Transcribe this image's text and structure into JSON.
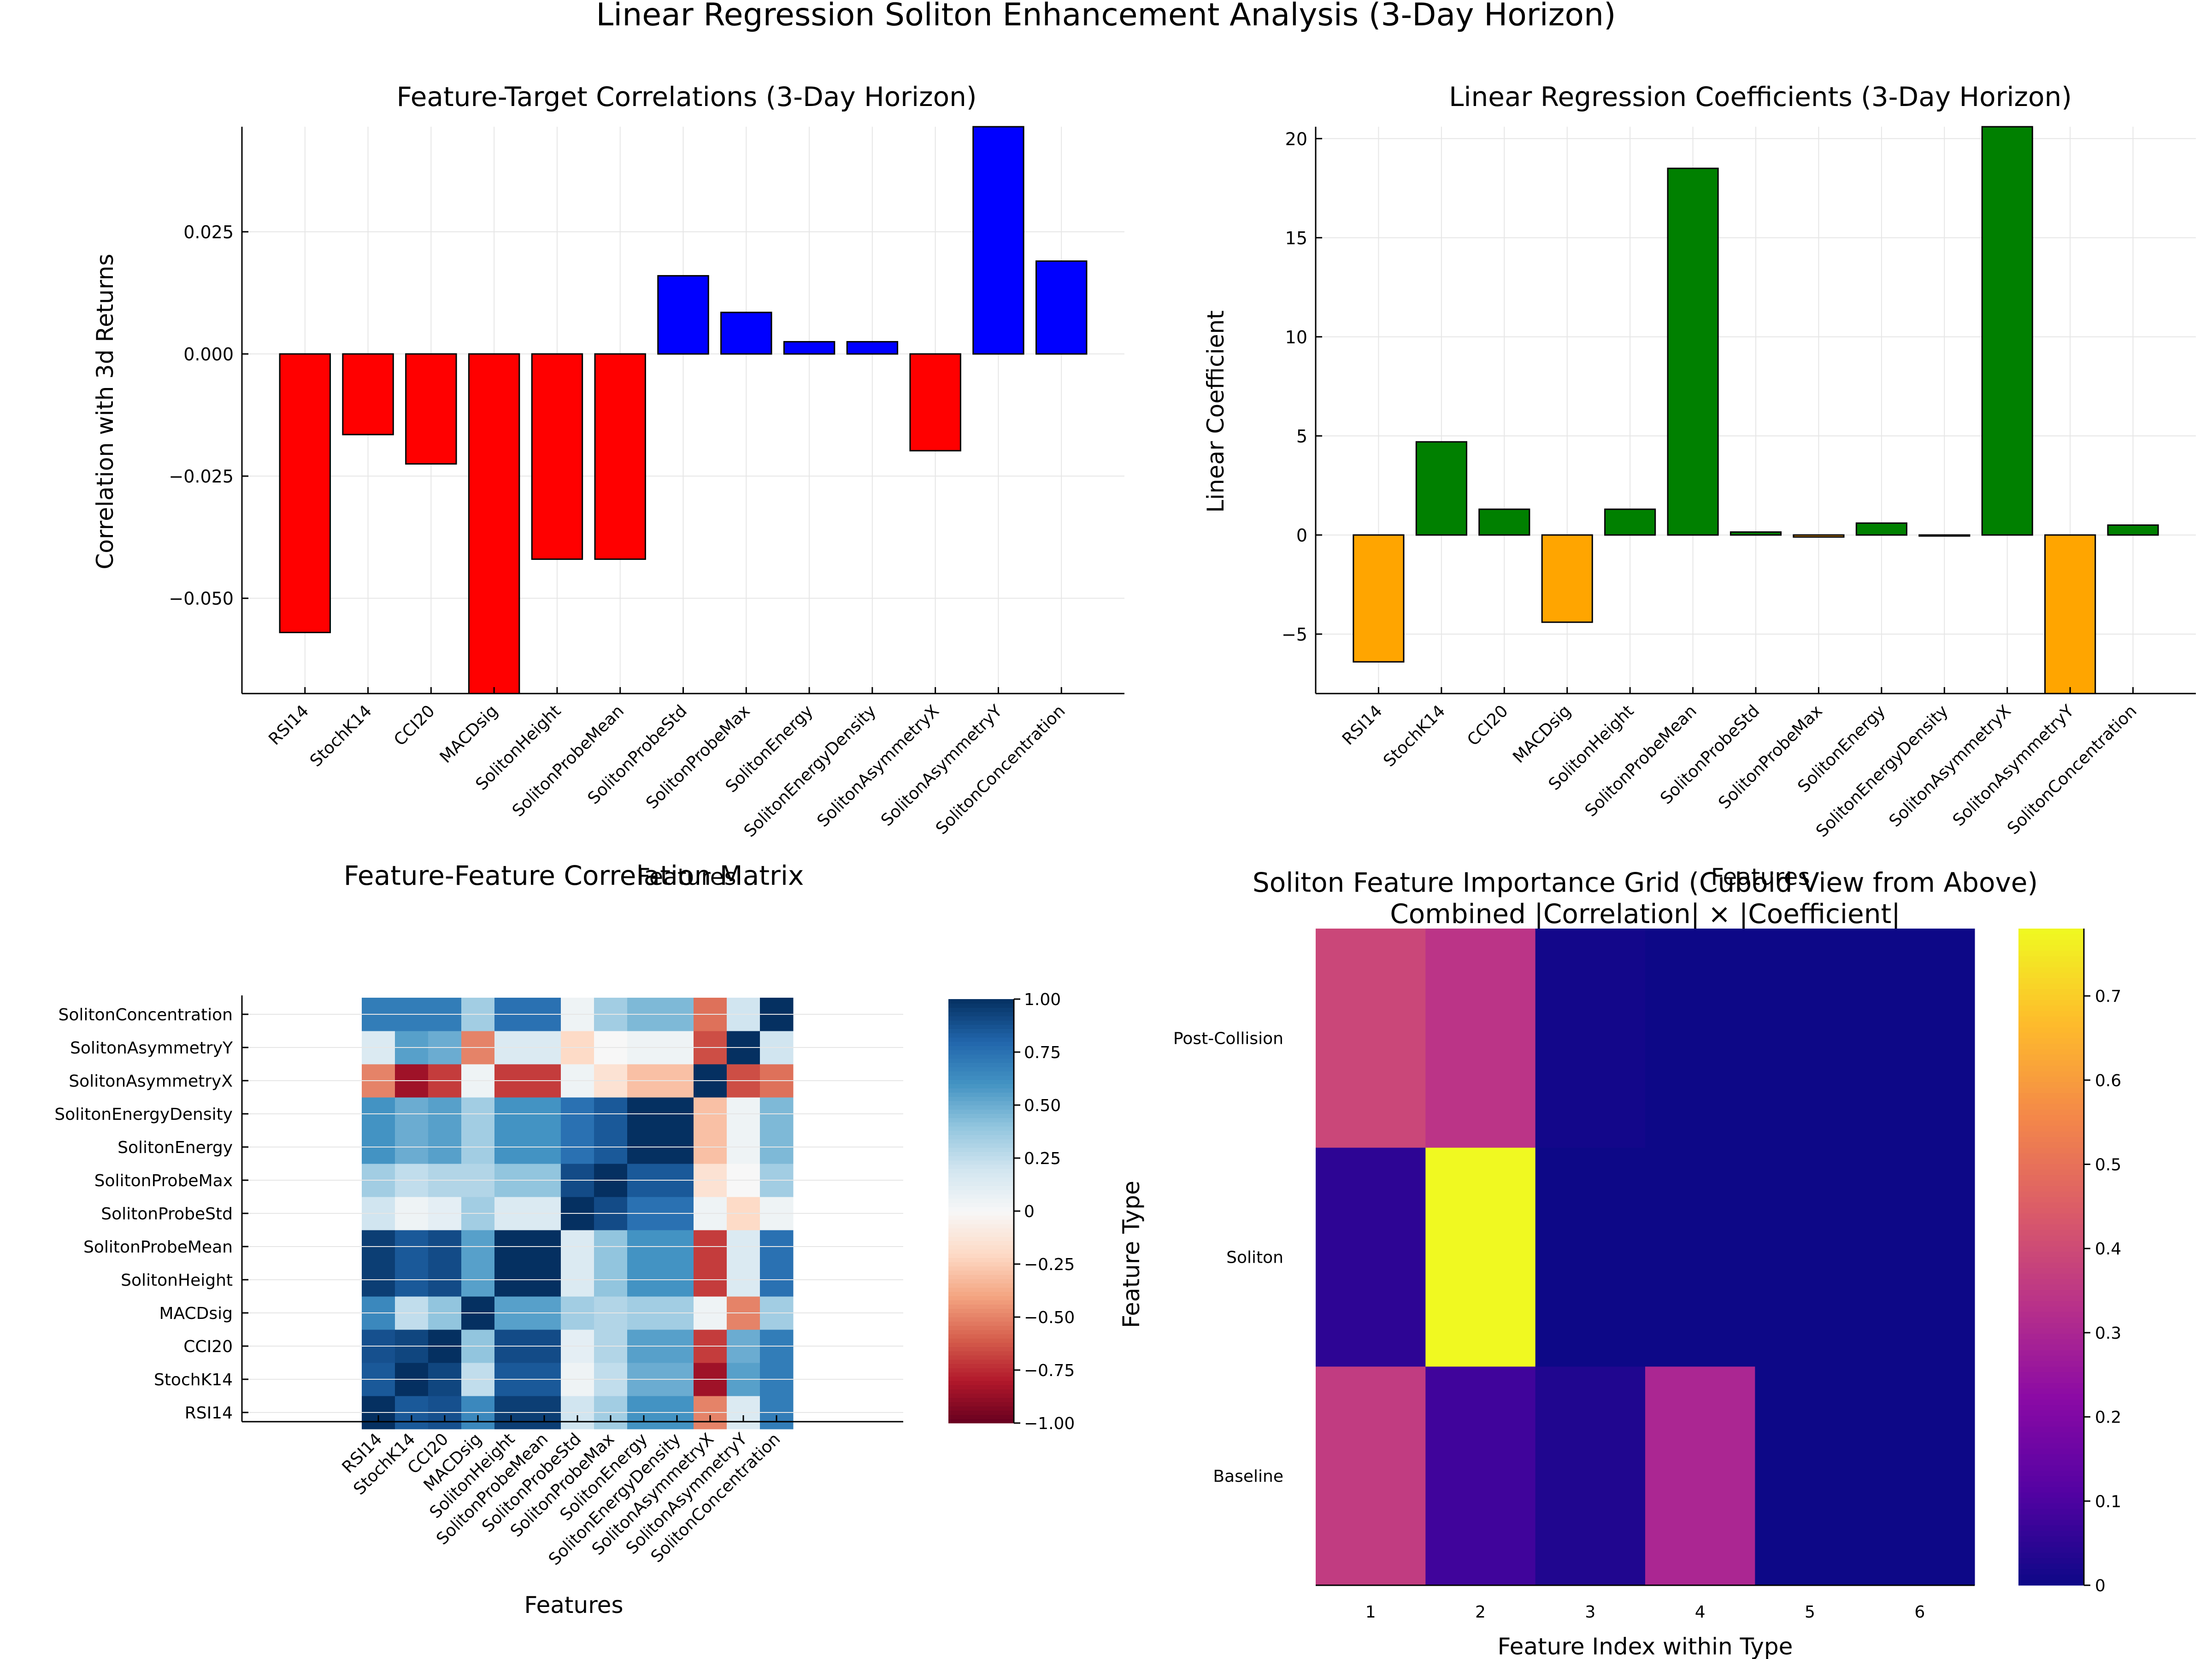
{
  "suptitle": "Linear Regression Soliton Enhancement Analysis (3-Day Horizon)",
  "features": [
    "RSI14",
    "StochK14",
    "CCI20",
    "MACDsig",
    "SolitonHeight",
    "SolitonProbeMean",
    "SolitonProbeStd",
    "SolitonProbeMax",
    "SolitonEnergy",
    "SolitonEnergyDensity",
    "SolitonAsymmetryX",
    "SolitonAsymmetryY",
    "SolitonConcentration"
  ],
  "colors": {
    "negative_corr": "#ff0000",
    "positive_corr": "#0000ff",
    "positive_coef": "#008000",
    "negative_coef": "#ffa500"
  },
  "chart_data": [
    {
      "type": "bar",
      "title": "Feature-Target Correlations (3-Day Horizon)",
      "xlabel": "Features",
      "ylabel": "Correlation with 3d Returns",
      "categories": [
        "RSI14",
        "StochK14",
        "CCI20",
        "MACDsig",
        "SolitonHeight",
        "SolitonProbeMean",
        "SolitonProbeStd",
        "SolitonProbeMax",
        "SolitonEnergy",
        "SolitonEnergyDensity",
        "SolitonAsymmetryX",
        "SolitonAsymmetryY",
        "SolitonConcentration"
      ],
      "values": [
        -0.057,
        -0.0165,
        -0.0225,
        -0.072,
        -0.042,
        -0.042,
        0.016,
        0.0085,
        0.0025,
        0.0025,
        -0.0198,
        0.047,
        0.019
      ],
      "ylim": [
        -0.0695,
        0.0465
      ],
      "yticks": [
        -0.05,
        -0.025,
        0.0,
        0.025
      ],
      "ytick_labels": [
        "−0.050",
        "−0.025",
        "0.000",
        "0.025"
      ],
      "grid": true
    },
    {
      "type": "bar",
      "title": "Linear Regression Coefficients (3-Day Horizon)",
      "xlabel": "Features",
      "ylabel": "Linear Coefficient",
      "categories": [
        "RSI14",
        "StochK14",
        "CCI20",
        "MACDsig",
        "SolitonHeight",
        "SolitonProbeMean",
        "SolitonProbeStd",
        "SolitonProbeMax",
        "SolitonEnergy",
        "SolitonEnergyDensity",
        "SolitonAsymmetryX",
        "SolitonAsymmetryY",
        "SolitonConcentration"
      ],
      "values": [
        -6.4,
        4.7,
        1.3,
        -4.4,
        1.3,
        18.5,
        0.15,
        -0.1,
        0.6,
        -0.05,
        20.6,
        -8.5,
        0.5
      ],
      "ylim": [
        -8.0,
        20.6
      ],
      "yticks": [
        -5,
        0,
        5,
        10,
        15,
        20
      ],
      "ytick_labels": [
        "−5",
        "0",
        "5",
        "10",
        "15",
        "20"
      ],
      "grid": true
    },
    {
      "type": "heatmap",
      "title": "Feature-Feature Correlation Matrix",
      "xlabel": "Features",
      "rows": [
        "RSI14",
        "StochK14",
        "CCI20",
        "MACDsig",
        "SolitonHeight",
        "SolitonProbeMean",
        "SolitonProbeStd",
        "SolitonProbeMax",
        "SolitonEnergy",
        "SolitonEnergyDensity",
        "SolitonAsymmetryX",
        "SolitonAsymmetryY",
        "SolitonConcentration"
      ],
      "columns": [
        "RSI14",
        "StochK14",
        "CCI20",
        "MACDsig",
        "SolitonHeight",
        "SolitonProbeMean",
        "SolitonProbeStd",
        "SolitonProbeMax",
        "SolitonEnergy",
        "SolitonEnergyDensity",
        "SolitonAsymmetryX",
        "SolitonAsymmetryY",
        "SolitonConcentration"
      ],
      "matrix": [
        [
          1.0,
          0.85,
          0.88,
          0.65,
          0.95,
          0.95,
          0.2,
          0.35,
          0.6,
          0.6,
          -0.5,
          0.15,
          0.7
        ],
        [
          0.85,
          1.0,
          0.92,
          0.25,
          0.85,
          0.85,
          0.05,
          0.25,
          0.5,
          0.5,
          -0.85,
          0.55,
          0.7
        ],
        [
          0.88,
          0.92,
          1.0,
          0.4,
          0.9,
          0.9,
          0.1,
          0.3,
          0.55,
          0.55,
          -0.7,
          0.5,
          0.7
        ],
        [
          0.65,
          0.25,
          0.4,
          1.0,
          0.55,
          0.55,
          0.35,
          0.3,
          0.35,
          0.35,
          0.05,
          -0.5,
          0.35
        ],
        [
          0.95,
          0.85,
          0.9,
          0.55,
          1.0,
          1.0,
          0.15,
          0.4,
          0.6,
          0.6,
          -0.7,
          0.15,
          0.75
        ],
        [
          0.95,
          0.85,
          0.9,
          0.55,
          1.0,
          1.0,
          0.15,
          0.4,
          0.6,
          0.6,
          -0.7,
          0.15,
          0.75
        ],
        [
          0.2,
          0.05,
          0.1,
          0.35,
          0.15,
          0.15,
          1.0,
          0.9,
          0.75,
          0.75,
          0.05,
          -0.2,
          0.05
        ],
        [
          0.35,
          0.25,
          0.3,
          0.3,
          0.4,
          0.4,
          0.9,
          1.0,
          0.85,
          0.85,
          -0.15,
          0.0,
          0.35
        ],
        [
          0.6,
          0.5,
          0.55,
          0.35,
          0.6,
          0.6,
          0.75,
          0.85,
          1.0,
          1.0,
          -0.3,
          0.05,
          0.45
        ],
        [
          0.6,
          0.5,
          0.55,
          0.35,
          0.6,
          0.6,
          0.75,
          0.85,
          1.0,
          1.0,
          -0.3,
          0.05,
          0.45
        ],
        [
          -0.5,
          -0.85,
          -0.7,
          0.05,
          -0.7,
          -0.7,
          0.05,
          -0.15,
          -0.3,
          -0.3,
          1.0,
          -0.65,
          -0.55
        ],
        [
          0.15,
          0.55,
          0.5,
          -0.5,
          0.15,
          0.15,
          -0.2,
          0.0,
          0.05,
          0.05,
          -0.65,
          1.0,
          0.2
        ],
        [
          0.7,
          0.7,
          0.7,
          0.35,
          0.75,
          0.75,
          0.05,
          0.35,
          0.45,
          0.45,
          -0.55,
          0.2,
          1.0
        ]
      ],
      "colorbar": {
        "range": [
          -1.0,
          1.0
        ],
        "ticks": [
          -1.0,
          -0.75,
          -0.5,
          -0.25,
          0,
          0.25,
          0.5,
          0.75,
          1.0
        ],
        "tick_labels": [
          "−1.00",
          "−0.75",
          "−0.50",
          "−0.25",
          "0",
          "0.25",
          "0.50",
          "0.75",
          "1.00"
        ],
        "colormap": "RdBu"
      }
    },
    {
      "type": "heatmap",
      "title": "Soliton Feature Importance Grid (Cuboid View from Above)",
      "subtitle": "Combined |Correlation| × |Coefficient|",
      "xlabel": "Feature Index within Type",
      "ylabel": "Feature Type",
      "x": [
        1,
        2,
        3,
        4,
        5,
        6
      ],
      "rows": [
        "Baseline",
        "Soliton",
        "Post-Collision"
      ],
      "matrix": [
        [
          0.36,
          0.08,
          0.03,
          0.3,
          0.0,
          0.0
        ],
        [
          0.05,
          0.78,
          0.0,
          0.0,
          0.0,
          0.0
        ],
        [
          0.39,
          0.34,
          0.01,
          0.0,
          0.0,
          0.0
        ]
      ],
      "colorbar": {
        "range": [
          0,
          0.78
        ],
        "ticks": [
          0,
          0.1,
          0.2,
          0.3,
          0.4,
          0.5,
          0.6,
          0.7
        ],
        "tick_labels": [
          "0",
          "0.1",
          "0.2",
          "0.3",
          "0.4",
          "0.5",
          "0.6",
          "0.7"
        ],
        "colormap": "plasma"
      }
    }
  ]
}
